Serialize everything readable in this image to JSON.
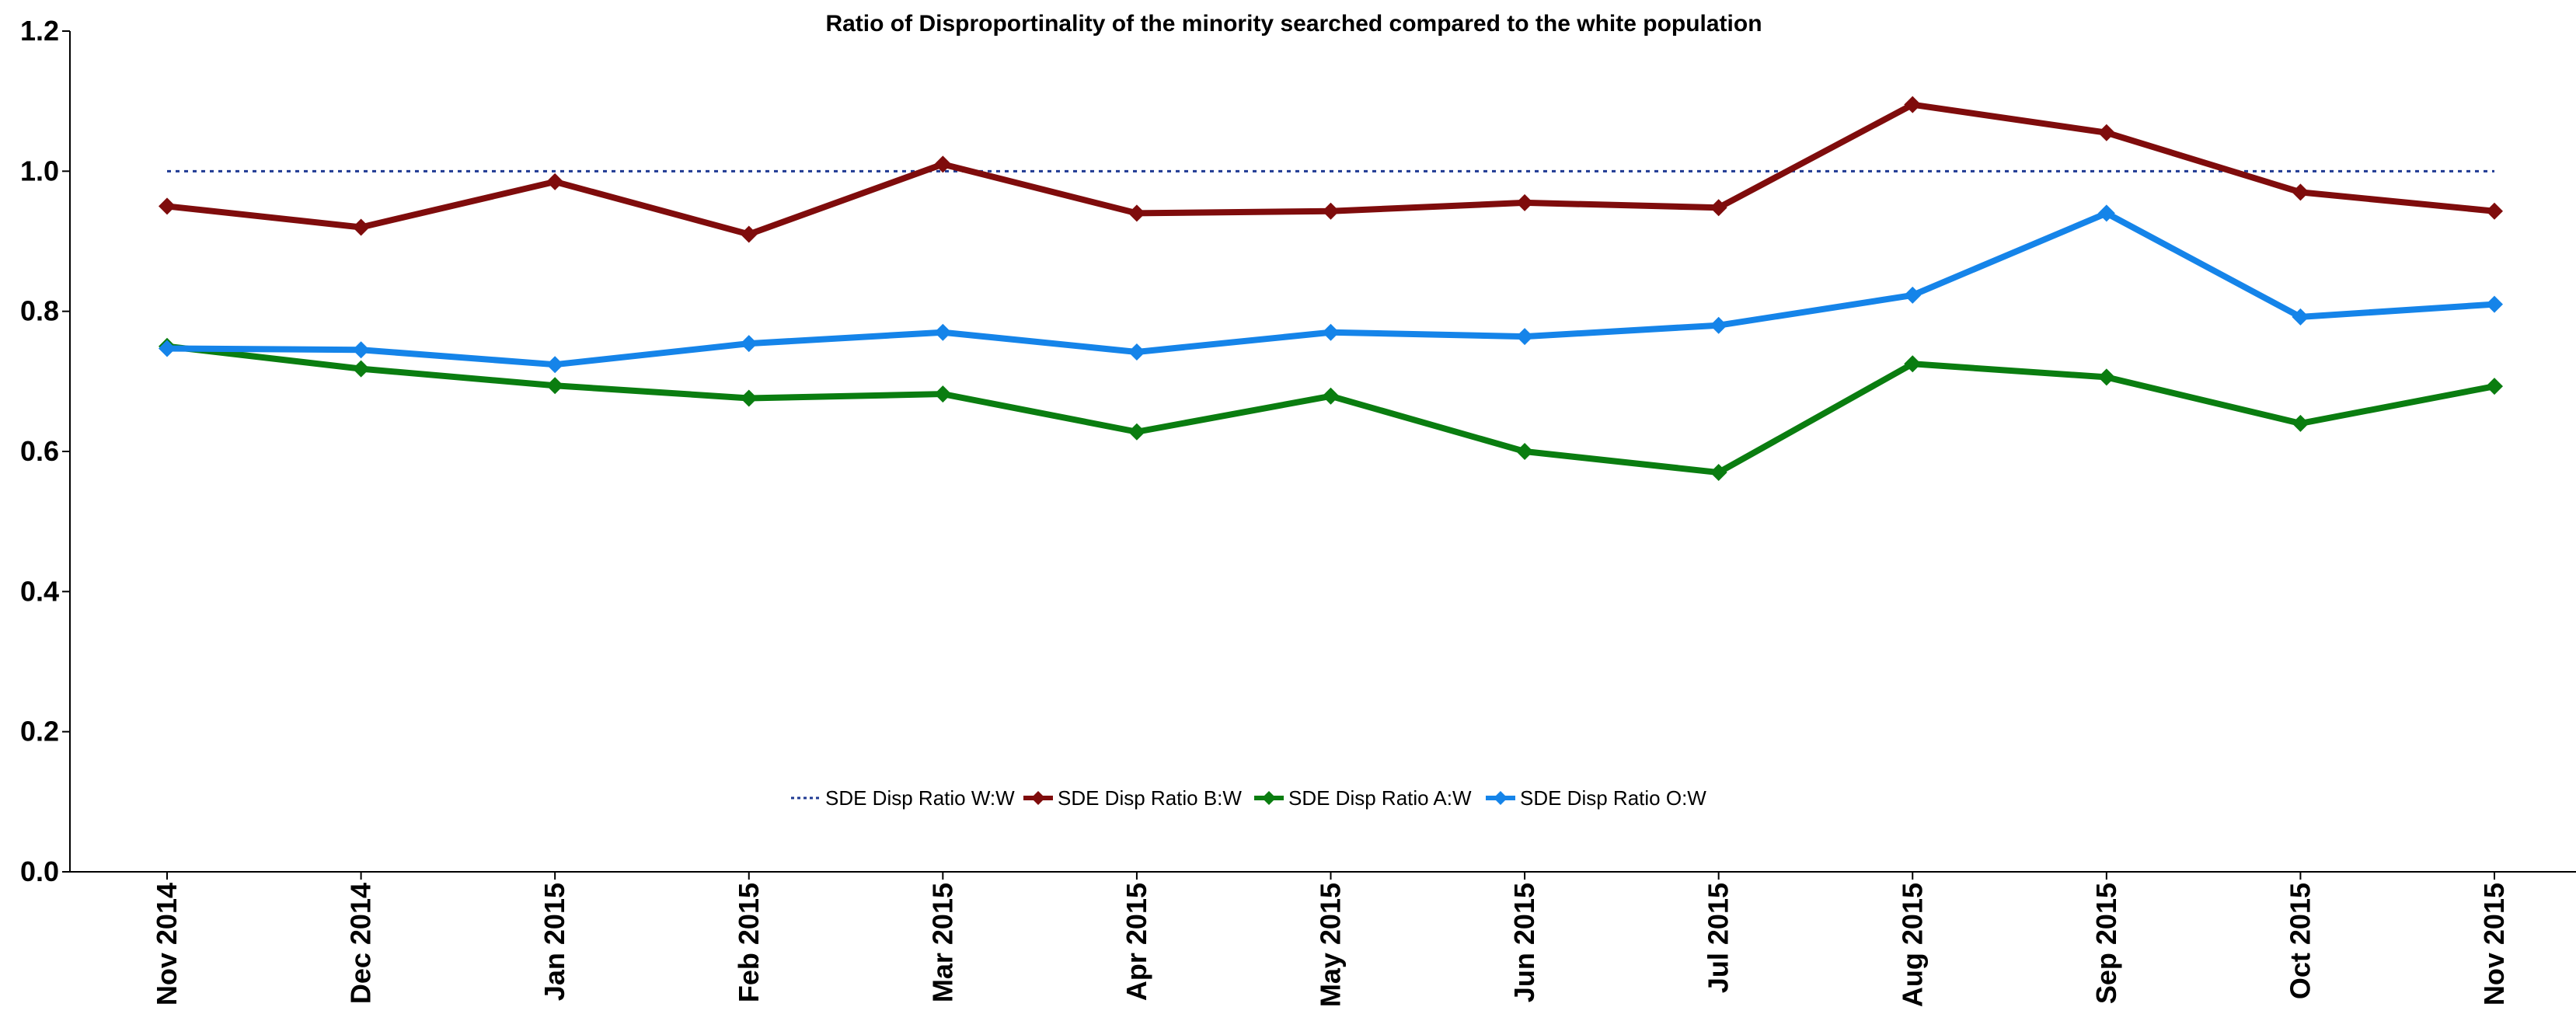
{
  "chart_data": {
    "type": "line",
    "title": "Ratio of Disproportinality of the minority searched compared to the white population",
    "xlabel": "",
    "ylabel": "",
    "ylim": [
      0,
      1.2
    ],
    "yticks": [
      "0.0",
      "0.2",
      "0.4",
      "0.6",
      "0.8",
      "1.0",
      "1.2"
    ],
    "categories": [
      "Nov 2014",
      "Dec 2014",
      "Jan 2015",
      "Feb 2015",
      "Mar 2015",
      "Apr 2015",
      "May 2015",
      "Jun 2015",
      "Jul 2015",
      "Aug 2015",
      "Sep 2015",
      "Oct 2015",
      "Nov 2015"
    ],
    "grid": false,
    "legend_position": "bottom-center",
    "series": [
      {
        "name": "SDE Disp Ratio W:W",
        "color": "#1f3a93",
        "style": "dotted",
        "marker": "none",
        "values": [
          1.0,
          1.0,
          1.0,
          1.0,
          1.0,
          1.0,
          1.0,
          1.0,
          1.0,
          1.0,
          1.0,
          1.0,
          1.0
        ]
      },
      {
        "name": "SDE Disp Ratio B:W",
        "color": "#7f0c0c",
        "style": "solid",
        "marker": "diamond",
        "values": [
          0.95,
          0.92,
          0.985,
          0.91,
          1.01,
          0.94,
          0.943,
          0.955,
          0.948,
          1.095,
          1.055,
          0.97,
          0.943
        ]
      },
      {
        "name": "SDE Disp Ratio A:W",
        "color": "#0a7d10",
        "style": "solid",
        "marker": "diamond",
        "values": [
          0.75,
          0.718,
          0.694,
          0.676,
          0.682,
          0.628,
          0.679,
          0.6,
          0.57,
          0.725,
          0.706,
          0.64,
          0.693
        ]
      },
      {
        "name": "SDE Disp Ratio O:W",
        "color": "#1584e9",
        "style": "solid",
        "marker": "diamond",
        "values": [
          0.747,
          0.745,
          0.724,
          0.754,
          0.77,
          0.742,
          0.77,
          0.764,
          0.78,
          0.823,
          0.94,
          0.792,
          0.81
        ]
      }
    ]
  }
}
